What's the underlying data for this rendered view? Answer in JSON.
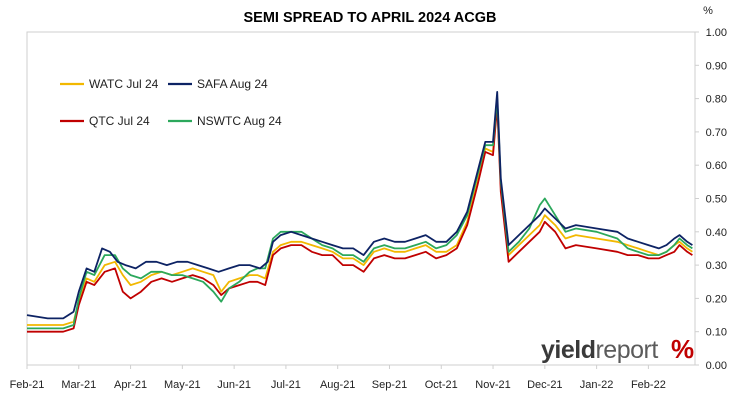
{
  "chart_data": {
    "type": "line",
    "title": "SEMI SPREAD TO APRIL 2024 ACGB",
    "unit_label": "%",
    "xlabel": "",
    "ylabel": "",
    "ylim": [
      0.0,
      1.0
    ],
    "y_ticks": [
      "0.00",
      "0.10",
      "0.20",
      "0.30",
      "0.40",
      "0.50",
      "0.60",
      "0.70",
      "0.80",
      "0.90",
      "1.00"
    ],
    "x_ticks": [
      "Feb-21",
      "Mar-21",
      "Apr-21",
      "May-21",
      "Jun-21",
      "Jul-21",
      "Aug-21",
      "Sep-21",
      "Oct-21",
      "Nov-21",
      "Dec-21",
      "Jan-22",
      "Feb-22"
    ],
    "x_range_months": [
      0,
      12.9
    ],
    "grid": false,
    "legend_placement": "top-left",
    "logo": {
      "text_bold": "yield",
      "text_light": "report",
      "symbol": "%"
    },
    "series": [
      {
        "name": "WATC Jul 24",
        "color": "#f2b800",
        "points": [
          [
            0.0,
            0.12
          ],
          [
            0.4,
            0.12
          ],
          [
            0.7,
            0.12
          ],
          [
            0.9,
            0.13
          ],
          [
            1.0,
            0.19
          ],
          [
            1.15,
            0.26
          ],
          [
            1.3,
            0.25
          ],
          [
            1.5,
            0.3
          ],
          [
            1.7,
            0.31
          ],
          [
            1.85,
            0.27
          ],
          [
            2.0,
            0.24
          ],
          [
            2.2,
            0.25
          ],
          [
            2.4,
            0.27
          ],
          [
            2.6,
            0.28
          ],
          [
            2.8,
            0.27
          ],
          [
            3.0,
            0.28
          ],
          [
            3.2,
            0.29
          ],
          [
            3.4,
            0.28
          ],
          [
            3.6,
            0.27
          ],
          [
            3.75,
            0.22
          ],
          [
            3.9,
            0.25
          ],
          [
            4.1,
            0.26
          ],
          [
            4.3,
            0.27
          ],
          [
            4.45,
            0.27
          ],
          [
            4.6,
            0.26
          ],
          [
            4.75,
            0.34
          ],
          [
            4.9,
            0.36
          ],
          [
            5.1,
            0.37
          ],
          [
            5.3,
            0.37
          ],
          [
            5.5,
            0.36
          ],
          [
            5.7,
            0.35
          ],
          [
            5.9,
            0.34
          ],
          [
            6.1,
            0.32
          ],
          [
            6.3,
            0.32
          ],
          [
            6.5,
            0.3
          ],
          [
            6.7,
            0.34
          ],
          [
            6.9,
            0.35
          ],
          [
            7.1,
            0.34
          ],
          [
            7.3,
            0.34
          ],
          [
            7.5,
            0.35
          ],
          [
            7.7,
            0.36
          ],
          [
            7.9,
            0.34
          ],
          [
            8.1,
            0.34
          ],
          [
            8.3,
            0.36
          ],
          [
            8.5,
            0.43
          ],
          [
            8.7,
            0.55
          ],
          [
            8.85,
            0.65
          ],
          [
            9.0,
            0.64
          ],
          [
            9.08,
            0.79
          ],
          [
            9.15,
            0.54
          ],
          [
            9.3,
            0.33
          ],
          [
            9.5,
            0.36
          ],
          [
            9.7,
            0.39
          ],
          [
            9.9,
            0.42
          ],
          [
            10.0,
            0.45
          ],
          [
            10.2,
            0.42
          ],
          [
            10.4,
            0.38
          ],
          [
            10.6,
            0.39
          ],
          [
            11.0,
            0.38
          ],
          [
            11.4,
            0.37
          ],
          [
            11.6,
            0.36
          ],
          [
            11.8,
            0.35
          ],
          [
            12.0,
            0.34
          ],
          [
            12.2,
            0.33
          ],
          [
            12.35,
            0.34
          ],
          [
            12.5,
            0.36
          ],
          [
            12.6,
            0.37
          ],
          [
            12.75,
            0.35
          ],
          [
            12.85,
            0.34
          ]
        ]
      },
      {
        "name": "SAFA Aug 24",
        "color": "#0d2364",
        "points": [
          [
            0.0,
            0.15
          ],
          [
            0.4,
            0.14
          ],
          [
            0.7,
            0.14
          ],
          [
            0.9,
            0.16
          ],
          [
            1.0,
            0.22
          ],
          [
            1.15,
            0.29
          ],
          [
            1.3,
            0.28
          ],
          [
            1.45,
            0.35
          ],
          [
            1.6,
            0.34
          ],
          [
            1.75,
            0.31
          ],
          [
            1.9,
            0.3
          ],
          [
            2.1,
            0.29
          ],
          [
            2.3,
            0.31
          ],
          [
            2.5,
            0.31
          ],
          [
            2.7,
            0.3
          ],
          [
            2.9,
            0.31
          ],
          [
            3.1,
            0.31
          ],
          [
            3.3,
            0.3
          ],
          [
            3.5,
            0.29
          ],
          [
            3.7,
            0.28
          ],
          [
            3.9,
            0.29
          ],
          [
            4.1,
            0.3
          ],
          [
            4.3,
            0.3
          ],
          [
            4.5,
            0.29
          ],
          [
            4.65,
            0.31
          ],
          [
            4.75,
            0.37
          ],
          [
            4.9,
            0.39
          ],
          [
            5.1,
            0.4
          ],
          [
            5.3,
            0.39
          ],
          [
            5.5,
            0.38
          ],
          [
            5.7,
            0.37
          ],
          [
            5.9,
            0.36
          ],
          [
            6.1,
            0.35
          ],
          [
            6.3,
            0.35
          ],
          [
            6.5,
            0.33
          ],
          [
            6.7,
            0.37
          ],
          [
            6.9,
            0.38
          ],
          [
            7.1,
            0.37
          ],
          [
            7.3,
            0.37
          ],
          [
            7.5,
            0.38
          ],
          [
            7.7,
            0.39
          ],
          [
            7.9,
            0.37
          ],
          [
            8.1,
            0.37
          ],
          [
            8.3,
            0.4
          ],
          [
            8.5,
            0.46
          ],
          [
            8.7,
            0.58
          ],
          [
            8.85,
            0.67
          ],
          [
            9.0,
            0.67
          ],
          [
            9.08,
            0.82
          ],
          [
            9.15,
            0.56
          ],
          [
            9.3,
            0.36
          ],
          [
            9.5,
            0.39
          ],
          [
            9.7,
            0.42
          ],
          [
            9.9,
            0.45
          ],
          [
            10.0,
            0.47
          ],
          [
            10.2,
            0.44
          ],
          [
            10.4,
            0.41
          ],
          [
            10.6,
            0.42
          ],
          [
            11.0,
            0.41
          ],
          [
            11.4,
            0.4
          ],
          [
            11.6,
            0.38
          ],
          [
            11.8,
            0.37
          ],
          [
            12.0,
            0.36
          ],
          [
            12.2,
            0.35
          ],
          [
            12.35,
            0.36
          ],
          [
            12.5,
            0.38
          ],
          [
            12.6,
            0.39
          ],
          [
            12.75,
            0.37
          ],
          [
            12.85,
            0.36
          ]
        ]
      },
      {
        "name": "QTC Jul 24",
        "color": "#c00000",
        "points": [
          [
            0.0,
            0.1
          ],
          [
            0.4,
            0.1
          ],
          [
            0.7,
            0.1
          ],
          [
            0.9,
            0.11
          ],
          [
            1.0,
            0.18
          ],
          [
            1.15,
            0.25
          ],
          [
            1.3,
            0.24
          ],
          [
            1.5,
            0.28
          ],
          [
            1.7,
            0.29
          ],
          [
            1.85,
            0.22
          ],
          [
            2.0,
            0.2
          ],
          [
            2.2,
            0.22
          ],
          [
            2.4,
            0.25
          ],
          [
            2.6,
            0.26
          ],
          [
            2.8,
            0.25
          ],
          [
            3.0,
            0.26
          ],
          [
            3.2,
            0.27
          ],
          [
            3.4,
            0.26
          ],
          [
            3.6,
            0.24
          ],
          [
            3.75,
            0.21
          ],
          [
            3.9,
            0.23
          ],
          [
            4.1,
            0.24
          ],
          [
            4.3,
            0.25
          ],
          [
            4.45,
            0.25
          ],
          [
            4.6,
            0.24
          ],
          [
            4.75,
            0.33
          ],
          [
            4.9,
            0.35
          ],
          [
            5.1,
            0.36
          ],
          [
            5.3,
            0.36
          ],
          [
            5.5,
            0.34
          ],
          [
            5.7,
            0.33
          ],
          [
            5.9,
            0.33
          ],
          [
            6.1,
            0.3
          ],
          [
            6.3,
            0.3
          ],
          [
            6.5,
            0.28
          ],
          [
            6.7,
            0.32
          ],
          [
            6.9,
            0.33
          ],
          [
            7.1,
            0.32
          ],
          [
            7.3,
            0.32
          ],
          [
            7.5,
            0.33
          ],
          [
            7.7,
            0.34
          ],
          [
            7.9,
            0.32
          ],
          [
            8.1,
            0.33
          ],
          [
            8.3,
            0.35
          ],
          [
            8.5,
            0.42
          ],
          [
            8.7,
            0.54
          ],
          [
            8.85,
            0.64
          ],
          [
            9.0,
            0.63
          ],
          [
            9.08,
            0.78
          ],
          [
            9.15,
            0.52
          ],
          [
            9.3,
            0.31
          ],
          [
            9.5,
            0.34
          ],
          [
            9.7,
            0.37
          ],
          [
            9.9,
            0.4
          ],
          [
            10.0,
            0.43
          ],
          [
            10.2,
            0.4
          ],
          [
            10.4,
            0.35
          ],
          [
            10.6,
            0.36
          ],
          [
            11.0,
            0.35
          ],
          [
            11.4,
            0.34
          ],
          [
            11.6,
            0.33
          ],
          [
            11.8,
            0.33
          ],
          [
            12.0,
            0.32
          ],
          [
            12.2,
            0.32
          ],
          [
            12.35,
            0.33
          ],
          [
            12.5,
            0.34
          ],
          [
            12.6,
            0.36
          ],
          [
            12.75,
            0.34
          ],
          [
            12.85,
            0.33
          ]
        ]
      },
      {
        "name": "NSWTC Aug 24",
        "color": "#2ca85c",
        "points": [
          [
            0.0,
            0.11
          ],
          [
            0.4,
            0.11
          ],
          [
            0.7,
            0.11
          ],
          [
            0.9,
            0.12
          ],
          [
            1.0,
            0.2
          ],
          [
            1.15,
            0.28
          ],
          [
            1.3,
            0.27
          ],
          [
            1.5,
            0.33
          ],
          [
            1.7,
            0.33
          ],
          [
            1.85,
            0.29
          ],
          [
            2.0,
            0.27
          ],
          [
            2.2,
            0.26
          ],
          [
            2.4,
            0.28
          ],
          [
            2.6,
            0.28
          ],
          [
            2.8,
            0.27
          ],
          [
            3.0,
            0.27
          ],
          [
            3.2,
            0.26
          ],
          [
            3.4,
            0.25
          ],
          [
            3.6,
            0.22
          ],
          [
            3.75,
            0.19
          ],
          [
            3.9,
            0.23
          ],
          [
            4.1,
            0.25
          ],
          [
            4.3,
            0.28
          ],
          [
            4.45,
            0.29
          ],
          [
            4.6,
            0.29
          ],
          [
            4.75,
            0.38
          ],
          [
            4.9,
            0.4
          ],
          [
            5.1,
            0.4
          ],
          [
            5.3,
            0.4
          ],
          [
            5.5,
            0.38
          ],
          [
            5.7,
            0.36
          ],
          [
            5.9,
            0.35
          ],
          [
            6.1,
            0.33
          ],
          [
            6.3,
            0.33
          ],
          [
            6.5,
            0.31
          ],
          [
            6.7,
            0.35
          ],
          [
            6.9,
            0.36
          ],
          [
            7.1,
            0.35
          ],
          [
            7.3,
            0.35
          ],
          [
            7.5,
            0.36
          ],
          [
            7.7,
            0.37
          ],
          [
            7.9,
            0.35
          ],
          [
            8.1,
            0.36
          ],
          [
            8.3,
            0.39
          ],
          [
            8.5,
            0.45
          ],
          [
            8.7,
            0.57
          ],
          [
            8.85,
            0.66
          ],
          [
            9.0,
            0.66
          ],
          [
            9.08,
            0.8
          ],
          [
            9.15,
            0.55
          ],
          [
            9.3,
            0.34
          ],
          [
            9.5,
            0.37
          ],
          [
            9.7,
            0.41
          ],
          [
            9.9,
            0.48
          ],
          [
            10.0,
            0.5
          ],
          [
            10.2,
            0.45
          ],
          [
            10.4,
            0.4
          ],
          [
            10.6,
            0.41
          ],
          [
            11.0,
            0.4
          ],
          [
            11.4,
            0.38
          ],
          [
            11.6,
            0.35
          ],
          [
            11.8,
            0.34
          ],
          [
            12.0,
            0.33
          ],
          [
            12.2,
            0.33
          ],
          [
            12.35,
            0.34
          ],
          [
            12.5,
            0.36
          ],
          [
            12.6,
            0.38
          ],
          [
            12.75,
            0.36
          ],
          [
            12.85,
            0.35
          ]
        ]
      }
    ]
  }
}
